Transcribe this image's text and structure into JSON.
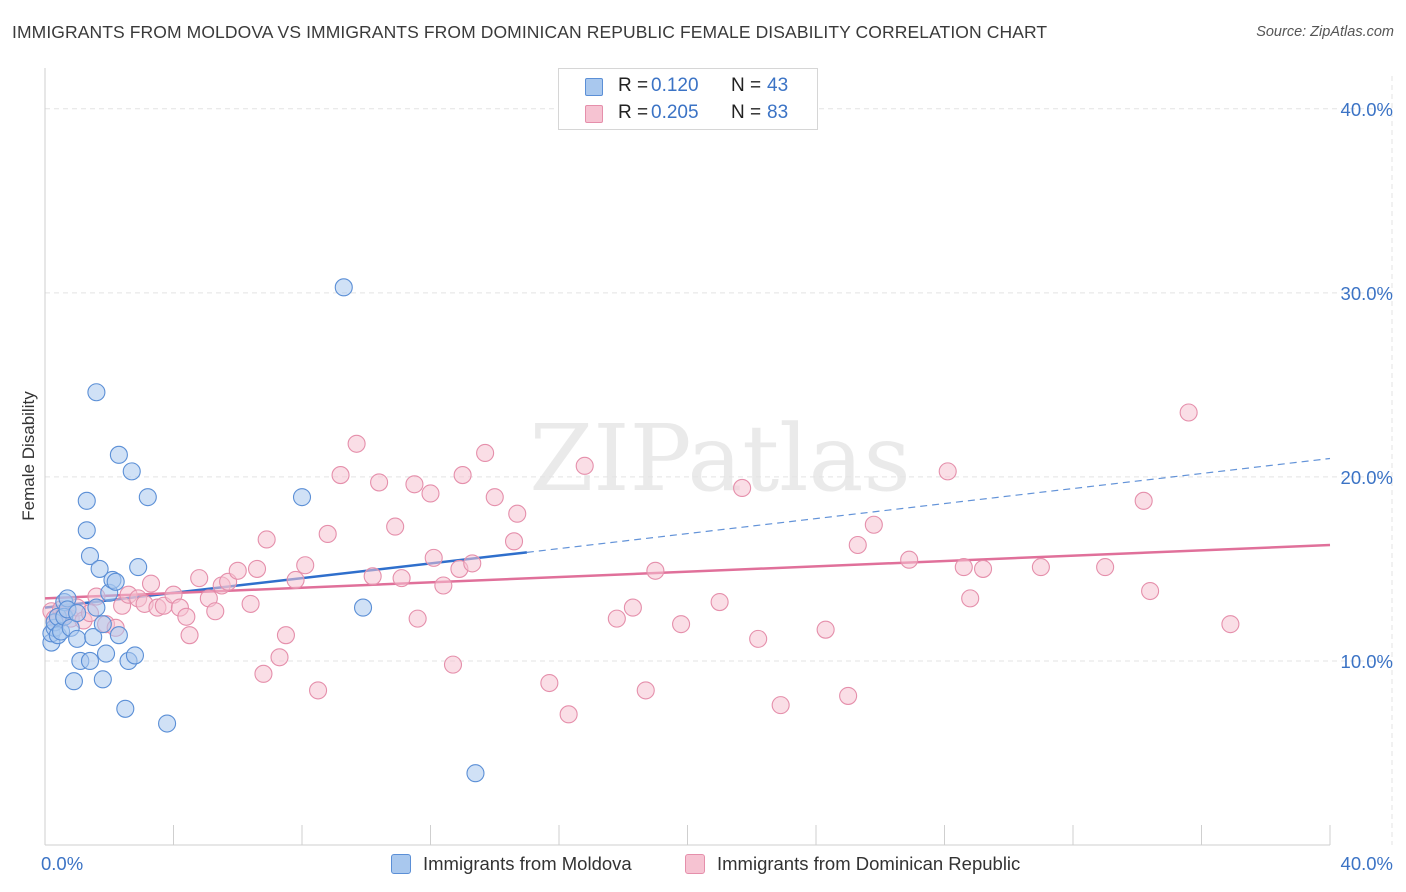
{
  "header": {
    "title": "IMMIGRANTS FROM MOLDOVA VS IMMIGRANTS FROM DOMINICAN REPUBLIC FEMALE DISABILITY CORRELATION CHART",
    "source": "Source: ZipAtlas.com"
  },
  "legend_top": {
    "rows": [
      {
        "r_label": "R =",
        "r_value": "0.120",
        "n_label": "N =",
        "n_value": "43"
      },
      {
        "r_label": "R =",
        "r_value": "0.205",
        "n_label": "N =",
        "n_value": "83"
      }
    ]
  },
  "legend_bottom": [
    {
      "label": "Immigrants from Moldova"
    },
    {
      "label": "Immigrants from Dominican Republic"
    }
  ],
  "colors": {
    "moldova_fill": "#a9c8ee",
    "moldova_stroke": "#5b8fd6",
    "moldova_line": "#2f6fcc",
    "dominican_fill": "#f6c3d2",
    "dominican_stroke": "#e58fab",
    "dominican_line": "#e0709a",
    "axis_label": "#3b73c5",
    "grid": "#e3e3e3"
  },
  "chart_data": {
    "type": "scatter",
    "title": "IMMIGRANTS FROM MOLDOVA VS IMMIGRANTS FROM DOMINICAN REPUBLIC FEMALE DISABILITY CORRELATION CHART",
    "xlabel": "",
    "ylabel": "Female Disability",
    "xlim": [
      0,
      40
    ],
    "ylim": [
      0,
      42
    ],
    "y_ticks": [
      10,
      20,
      30,
      40
    ],
    "y_tick_labels": [
      "10.0%",
      "20.0%",
      "30.0%",
      "40.0%"
    ],
    "x_tick_labels": [
      "0.0%",
      "40.0%"
    ],
    "watermark": "ZIPatlas",
    "series": [
      {
        "name": "Immigrants from Moldova",
        "r": 0.12,
        "n": 43,
        "trend": {
          "x0": 0,
          "y0": 12.9,
          "x1": 15,
          "y1": 15.9,
          "dash_x1": 40,
          "dash_y1": 21.0
        },
        "points": [
          [
            0.2,
            11.0
          ],
          [
            0.2,
            11.5
          ],
          [
            0.3,
            11.8
          ],
          [
            0.3,
            12.1
          ],
          [
            0.4,
            11.4
          ],
          [
            0.4,
            12.4
          ],
          [
            0.5,
            11.6
          ],
          [
            0.6,
            13.2
          ],
          [
            0.6,
            12.4
          ],
          [
            0.7,
            13.4
          ],
          [
            0.7,
            12.8
          ],
          [
            0.8,
            11.8
          ],
          [
            0.9,
            8.9
          ],
          [
            1.0,
            11.2
          ],
          [
            1.0,
            12.6
          ],
          [
            1.1,
            10.0
          ],
          [
            1.3,
            17.1
          ],
          [
            1.3,
            18.7
          ],
          [
            1.4,
            15.7
          ],
          [
            1.4,
            10.0
          ],
          [
            1.5,
            11.3
          ],
          [
            1.6,
            24.6
          ],
          [
            1.6,
            12.9
          ],
          [
            1.7,
            15.0
          ],
          [
            1.8,
            12.0
          ],
          [
            1.8,
            9.0
          ],
          [
            1.9,
            10.4
          ],
          [
            2.0,
            13.7
          ],
          [
            2.1,
            14.4
          ],
          [
            2.2,
            14.3
          ],
          [
            2.3,
            11.4
          ],
          [
            2.3,
            21.2
          ],
          [
            2.5,
            7.4
          ],
          [
            2.6,
            10.0
          ],
          [
            2.7,
            20.3
          ],
          [
            2.8,
            10.3
          ],
          [
            2.9,
            15.1
          ],
          [
            3.2,
            18.9
          ],
          [
            3.8,
            6.6
          ],
          [
            8.0,
            18.9
          ],
          [
            9.3,
            30.3
          ],
          [
            9.9,
            12.9
          ],
          [
            13.4,
            3.9
          ]
        ]
      },
      {
        "name": "Immigrants from Dominican Republic",
        "r": 0.205,
        "n": 83,
        "trend": {
          "x0": 0,
          "y0": 13.4,
          "x1": 40,
          "y1": 16.3
        },
        "points": [
          [
            0.2,
            12.7
          ],
          [
            0.3,
            12.3
          ],
          [
            0.4,
            12.2
          ],
          [
            0.5,
            12.8
          ],
          [
            0.6,
            12.5
          ],
          [
            0.8,
            12.3
          ],
          [
            1.0,
            12.9
          ],
          [
            1.2,
            12.2
          ],
          [
            1.4,
            12.6
          ],
          [
            1.6,
            13.5
          ],
          [
            1.9,
            12.0
          ],
          [
            2.2,
            11.8
          ],
          [
            2.4,
            13.0
          ],
          [
            2.6,
            13.6
          ],
          [
            2.9,
            13.4
          ],
          [
            3.1,
            13.1
          ],
          [
            3.3,
            14.2
          ],
          [
            3.5,
            12.9
          ],
          [
            3.7,
            13.0
          ],
          [
            4.0,
            13.6
          ],
          [
            4.2,
            12.9
          ],
          [
            4.4,
            12.4
          ],
          [
            4.5,
            11.4
          ],
          [
            4.8,
            14.5
          ],
          [
            5.1,
            13.4
          ],
          [
            5.3,
            12.7
          ],
          [
            5.5,
            14.1
          ],
          [
            5.7,
            14.3
          ],
          [
            6.0,
            14.9
          ],
          [
            6.4,
            13.1
          ],
          [
            6.6,
            15.0
          ],
          [
            6.9,
            16.6
          ],
          [
            6.8,
            9.3
          ],
          [
            7.3,
            10.2
          ],
          [
            7.5,
            11.4
          ],
          [
            7.8,
            14.4
          ],
          [
            8.1,
            15.2
          ],
          [
            8.5,
            8.4
          ],
          [
            8.8,
            16.9
          ],
          [
            9.2,
            20.1
          ],
          [
            9.7,
            21.8
          ],
          [
            10.2,
            14.6
          ],
          [
            10.4,
            19.7
          ],
          [
            10.9,
            17.3
          ],
          [
            11.1,
            14.5
          ],
          [
            11.5,
            19.6
          ],
          [
            11.6,
            12.3
          ],
          [
            12.0,
            19.1
          ],
          [
            12.1,
            15.6
          ],
          [
            12.4,
            14.1
          ],
          [
            12.7,
            9.8
          ],
          [
            12.9,
            15.0
          ],
          [
            13.0,
            20.1
          ],
          [
            13.3,
            15.3
          ],
          [
            13.7,
            21.3
          ],
          [
            14.0,
            18.9
          ],
          [
            14.6,
            16.5
          ],
          [
            14.7,
            18.0
          ],
          [
            15.7,
            8.8
          ],
          [
            16.3,
            7.1
          ],
          [
            16.8,
            20.6
          ],
          [
            17.8,
            12.3
          ],
          [
            18.3,
            12.9
          ],
          [
            18.7,
            8.4
          ],
          [
            19.0,
            14.9
          ],
          [
            19.8,
            12.0
          ],
          [
            21.0,
            13.2
          ],
          [
            21.7,
            19.4
          ],
          [
            22.2,
            11.2
          ],
          [
            22.9,
            7.6
          ],
          [
            24.3,
            11.7
          ],
          [
            25.0,
            8.1
          ],
          [
            25.3,
            16.3
          ],
          [
            25.8,
            17.4
          ],
          [
            26.9,
            15.5
          ],
          [
            28.1,
            20.3
          ],
          [
            28.6,
            15.1
          ],
          [
            28.8,
            13.4
          ],
          [
            29.2,
            15.0
          ],
          [
            31.0,
            15.1
          ],
          [
            33.0,
            15.1
          ],
          [
            34.2,
            18.7
          ],
          [
            34.4,
            13.8
          ],
          [
            35.6,
            23.5
          ],
          [
            36.9,
            12.0
          ]
        ]
      }
    ]
  }
}
